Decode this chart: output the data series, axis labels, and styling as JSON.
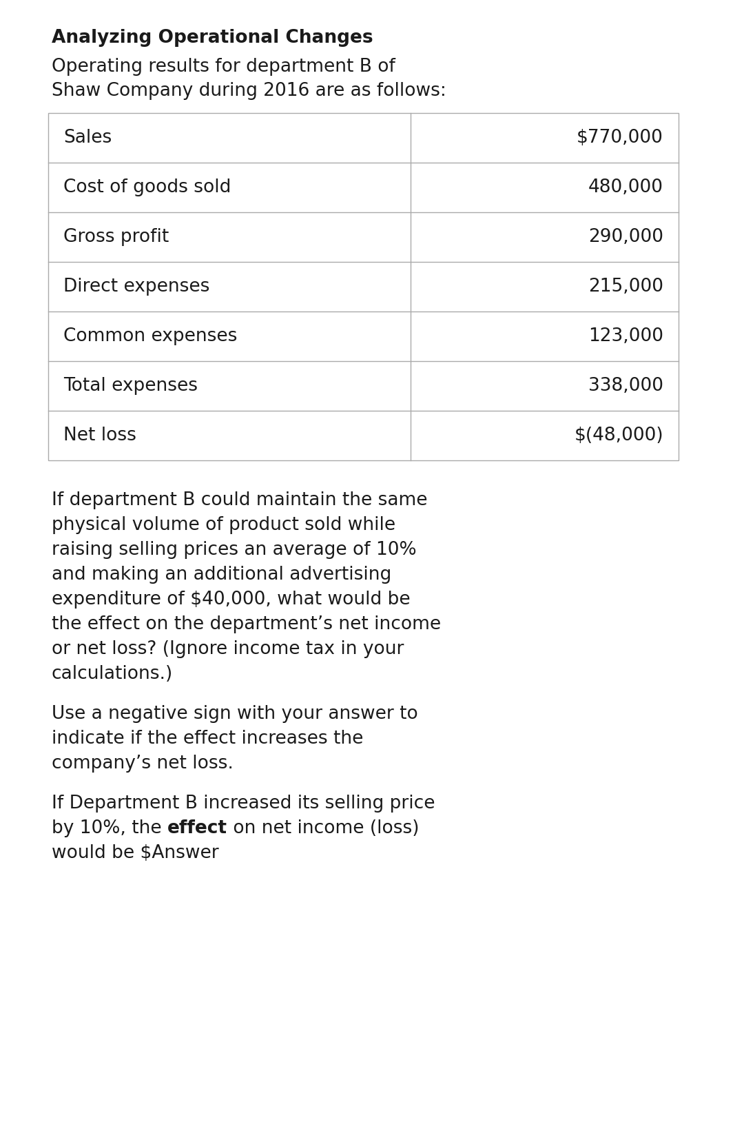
{
  "title": "Analyzing Operational Changes",
  "subtitle_line1": "Operating results for department B of",
  "subtitle_line2": "Shaw Company during 2016 are as follows:",
  "table_rows": [
    [
      "Sales",
      "$770,000"
    ],
    [
      "Cost of goods sold",
      "480,000"
    ],
    [
      "Gross profit",
      "290,000"
    ],
    [
      "Direct expenses",
      "215,000"
    ],
    [
      "Common expenses",
      "123,000"
    ],
    [
      "Total expenses",
      "338,000"
    ],
    [
      "Net loss",
      "$(48,000)"
    ]
  ],
  "para1_lines": [
    "If department B could maintain the same",
    "physical volume of product sold while",
    "raising selling prices an average of 10%",
    "and making an additional advertising",
    "expenditure of $40,000, what would be",
    "the effect on the department’s net income",
    "or net loss? (Ignore income tax in your",
    "calculations.)"
  ],
  "para2_lines": [
    "Use a negative sign with your answer to",
    "indicate if the effect increases the",
    "company’s net loss."
  ],
  "para3_line1": "If Department B increased its selling price",
  "para3_line2_pre": "by 10%, the ",
  "para3_line2_bold": "effect",
  "para3_line2_post": " on net income (loss)",
  "para3_line3": "would be $Answer",
  "bg_color": "#ffffff",
  "text_color": "#1a1a1a",
  "table_border_color": "#aaaaaa",
  "title_fontsize": 19,
  "subtitle_fontsize": 19,
  "body_fontsize": 19,
  "table_fontsize": 19
}
